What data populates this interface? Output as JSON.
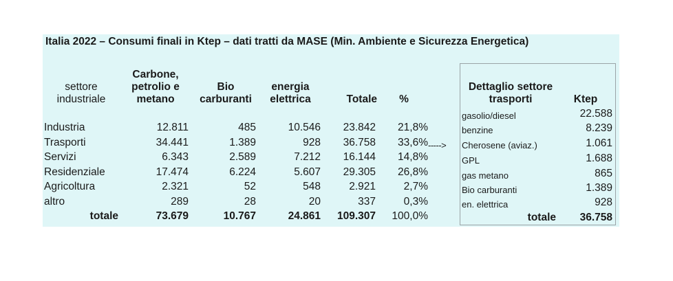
{
  "title": "Italia 2022 – Consumi finali in Ktep – dati tratti da MASE (Min. Ambiente e Sicurezza Energetica)",
  "main_table": {
    "headers": {
      "sector": [
        "settore",
        "industriale"
      ],
      "fossil": [
        "Carbone,",
        "petrolio e",
        "metano"
      ],
      "bio": [
        "Bio",
        "carburanti"
      ],
      "elec": [
        "energia",
        "elettrica"
      ],
      "total": "Totale",
      "pct": "%"
    },
    "rows": [
      {
        "sector": "Industria",
        "fossil": "12.811",
        "bio": "485",
        "elec": "10.546",
        "total": "23.842",
        "pct": "21,8%"
      },
      {
        "sector": "Trasporti",
        "fossil": "34.441",
        "bio": "1.389",
        "elec": "928",
        "total": "36.758",
        "pct": "33,6%"
      },
      {
        "sector": "Servizi",
        "fossil": "6.343",
        "bio": "2.589",
        "elec": "7.212",
        "total": "16.144",
        "pct": "14,8%"
      },
      {
        "sector": "Residenziale",
        "fossil": "17.474",
        "bio": "6.224",
        "elec": "5.607",
        "total": "29.305",
        "pct": "26,8%"
      },
      {
        "sector": "Agricoltura",
        "fossil": "2.321",
        "bio": "52",
        "elec": "548",
        "total": "2.921",
        "pct": "2,7%"
      },
      {
        "sector": "altro",
        "fossil": "289",
        "bio": "28",
        "elec": "20",
        "total": "337",
        "pct": "0,3%"
      }
    ],
    "totals": {
      "label": "totale",
      "fossil": "73.679",
      "bio": "10.767",
      "elec": "24.861",
      "total": "109.307",
      "pct": "100,0%"
    }
  },
  "arrow": "----->",
  "detail_table": {
    "headers": {
      "item": [
        "Dettaglio settore",
        "trasporti"
      ],
      "value": "Ktep"
    },
    "rows": [
      {
        "item": "gasolio/diesel",
        "value": "22.588"
      },
      {
        "item": "benzine",
        "value": "8.239"
      },
      {
        "item": "Cherosene (aviaz.)",
        "value": "1.061"
      },
      {
        "item": "GPL",
        "value": "1.688"
      },
      {
        "item": "gas metano",
        "value": "865"
      },
      {
        "item": "Bio carburanti",
        "value": "1.389"
      },
      {
        "item": "en. elettrica",
        "value": "928"
      }
    ],
    "totals": {
      "label": "totale",
      "value": "36.758"
    }
  }
}
